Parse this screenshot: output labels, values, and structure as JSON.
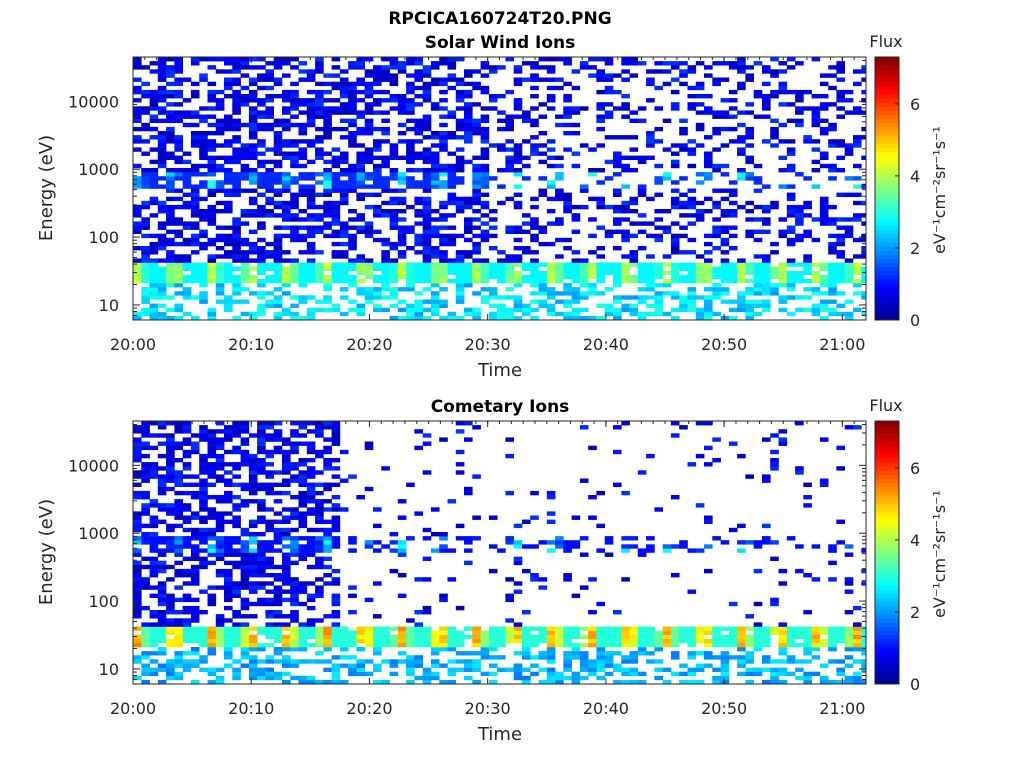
{
  "figure_title": "RPCICA160724T20.PNG",
  "colors": {
    "colormap": [
      "#00008f",
      "#0000ff",
      "#0080ff",
      "#00ffff",
      "#80ff80",
      "#ffff00",
      "#ff8000",
      "#ff0000",
      "#800000"
    ],
    "axis": "#262626",
    "background": "#ffffff"
  },
  "chart_data": [
    {
      "type": "heatmap",
      "title": "Solar Wind Ions",
      "xlabel": "Time",
      "ylabel": "Energy (eV)",
      "y_scale": "log",
      "ylim": [
        6,
        45000
      ],
      "xlim": [
        "20:00",
        "21:02"
      ],
      "x_ticks": [
        "20:00",
        "20:10",
        "20:20",
        "20:30",
        "20:40",
        "20:50",
        "21:00"
      ],
      "y_ticks": [
        "10",
        "100",
        "1000",
        "10000"
      ],
      "colorbar": {
        "title": "Flux",
        "label": "eV⁻¹cm⁻²sr⁻¹s⁻¹",
        "range": [
          0,
          7.3
        ],
        "ticks": [
          "0",
          "2",
          "4",
          "6"
        ]
      },
      "high_energy_noise_end": "20:30",
      "bands": [
        {
          "energy_range_eV": [
            20,
            40
          ],
          "flux_peak": 4.3,
          "flux_trough": 2.7,
          "period_min": 3.2
        },
        {
          "energy_range_eV": [
            500,
            900
          ],
          "flux_peak": 3.2,
          "flux_trough": 1.2,
          "period_min": 3.2
        },
        {
          "energy_range_eV": [
            6,
            20
          ],
          "flux_typical": 2.5
        },
        {
          "energy_range_eV": [
            40,
            45000
          ],
          "flux_typical": 1.0
        }
      ]
    },
    {
      "type": "heatmap",
      "title": "Cometary Ions",
      "xlabel": "Time",
      "ylabel": "Energy (eV)",
      "y_scale": "log",
      "ylim": [
        6,
        45000
      ],
      "xlim": [
        "20:00",
        "21:02"
      ],
      "x_ticks": [
        "20:00",
        "20:10",
        "20:20",
        "20:30",
        "20:40",
        "20:50",
        "21:00"
      ],
      "y_ticks": [
        "10",
        "100",
        "1000",
        "10000"
      ],
      "colorbar": {
        "title": "Flux",
        "label": "eV⁻¹cm⁻²sr⁻¹s⁻¹",
        "range": [
          0,
          7.3
        ],
        "ticks": [
          "0",
          "2",
          "4",
          "6"
        ]
      },
      "high_energy_noise_end": "20:17",
      "bands": [
        {
          "energy_range_eV": [
            20,
            45
          ],
          "flux_peak": 5.5,
          "flux_trough": 3.0,
          "period_min": 3.2
        },
        {
          "energy_range_eV": [
            500,
            900
          ],
          "flux_peak": 3.0,
          "flux_trough": 1.0,
          "period_min": 3.2
        },
        {
          "energy_range_eV": [
            6,
            20
          ],
          "flux_typical": 2.2
        },
        {
          "energy_range_eV": [
            40,
            45000
          ],
          "flux_typical": 1.0
        }
      ]
    }
  ]
}
